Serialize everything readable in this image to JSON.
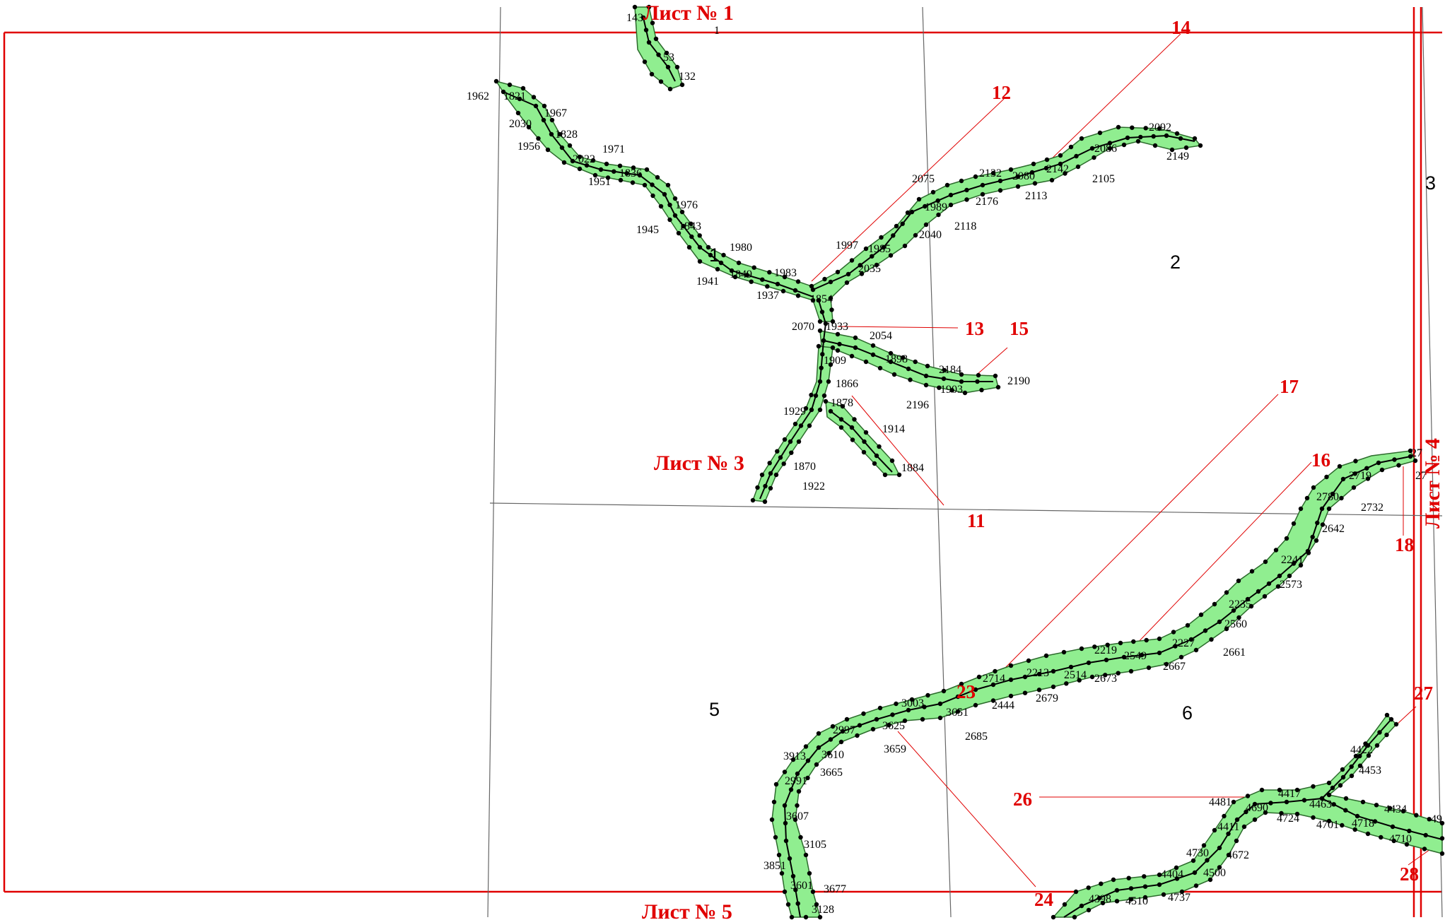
{
  "sheets": {
    "s1": "Лист № 1",
    "s3": "Лист № 3",
    "s4": "Лист № 4",
    "s5": "Лист № 5"
  },
  "regions": [
    "1",
    "2",
    "3",
    "5",
    "6"
  ],
  "callouts": [
    "11",
    "12",
    "13",
    "14",
    "15",
    "16",
    "17",
    "18",
    "23",
    "24",
    "26",
    "27",
    "28"
  ],
  "points": {
    "top": [
      "143",
      "1",
      "53",
      "132"
    ],
    "upper_river": [
      "1962",
      "1821",
      "1967",
      "2030",
      "1828",
      "1956",
      "2022",
      "1971",
      "1951",
      "1836",
      "1976",
      "1843",
      "1945",
      "1980",
      "1849",
      "1983",
      "1941",
      "1937",
      "1854",
      "2075",
      "1997",
      "1985",
      "2035",
      "1989",
      "2040",
      "2118",
      "2132",
      "2080",
      "2142",
      "2086",
      "2092",
      "2149",
      "2105",
      "2176",
      "2113"
    ],
    "fork": [
      "2070",
      "1933",
      "2054",
      "1898",
      "1909",
      "2184",
      "2190",
      "1903",
      "1866",
      "2196",
      "1929",
      "1878",
      "1914",
      "1870",
      "1884",
      "1922"
    ],
    "lower_river": [
      "27",
      "2719",
      "27",
      "2780",
      "2732",
      "2642",
      "2241",
      "2573",
      "2235",
      "2560",
      "2661",
      "2227",
      "2219",
      "2549",
      "2667",
      "2714",
      "2213",
      "2514",
      "2673",
      "3003",
      "2444",
      "2679",
      "3651",
      "2685",
      "2997",
      "3625",
      "3659",
      "3913",
      "3610",
      "3665",
      "2991",
      "3607",
      "3105",
      "3851",
      "3601",
      "3677",
      "3128"
    ],
    "southeast_river": [
      "4422",
      "4453",
      "4481",
      "4417",
      "4690",
      "4463",
      "4724",
      "4434",
      "4411",
      "4701",
      "4718",
      "49",
      "4710",
      "4730",
      "4672",
      "4404",
      "4500",
      "4398",
      "4510",
      "4737"
    ]
  },
  "colors": {
    "river_fill": "#90ee90",
    "frame": "#e00000",
    "grid": "#666666"
  }
}
